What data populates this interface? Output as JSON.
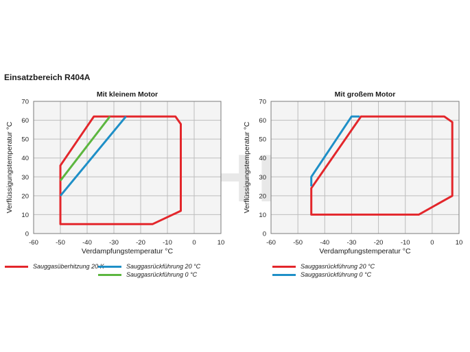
{
  "page_title": "Einsatzbereich R404A",
  "watermark_text": "SCHIESSL",
  "colors": {
    "red": "#e3262b",
    "blue": "#1e8fc7",
    "green": "#5cb63f",
    "grid": "#bdbdbd",
    "plot_bg": "#f4f4f4"
  },
  "chart_data": [
    {
      "type": "line",
      "title": "Mit kleinem Motor",
      "xlabel": "Verdampfungstemperatur °C",
      "ylabel": "Verflüssigungstemperatur °C",
      "xlim": [
        -60,
        10
      ],
      "ylim": [
        0,
        70
      ],
      "xticks": [
        "-60",
        "-50",
        "-40",
        "-30",
        "-20",
        "-10",
        "0",
        "10"
      ],
      "yticks": [
        "0",
        "10",
        "20",
        "30",
        "40",
        "50",
        "60",
        "70"
      ],
      "grid": true,
      "series": [
        {
          "name": "Sauggasüberhitzung 20 K",
          "color": "red",
          "closed": true,
          "points": [
            [
              -50,
              36
            ],
            [
              -37.5,
              62
            ],
            [
              -7,
              62
            ],
            [
              -5,
              58
            ],
            [
              -5,
              12
            ],
            [
              -15.5,
              5
            ],
            [
              -50,
              5
            ]
          ]
        },
        {
          "name": "Sauggasrückführung 20 °C",
          "color": "blue",
          "closed": false,
          "points": [
            [
              -50,
              20
            ],
            [
              -25.5,
              62
            ]
          ]
        },
        {
          "name": "Sauggasrückführung 0 °C",
          "color": "green",
          "closed": false,
          "points": [
            [
              -50,
              28
            ],
            [
              -31.5,
              62
            ]
          ]
        }
      ]
    },
    {
      "type": "line",
      "title": "Mit großem Motor",
      "xlabel": "Verdampfungstemperatur °C",
      "ylabel": "Verflüssigungstemperatur °C",
      "xlim": [
        -60,
        10
      ],
      "ylim": [
        0,
        70
      ],
      "xticks": [
        "-60",
        "-50",
        "-40",
        "-30",
        "-20",
        "-10",
        "0",
        "10"
      ],
      "yticks": [
        "0",
        "10",
        "20",
        "30",
        "40",
        "50",
        "60",
        "70"
      ],
      "grid": true,
      "series": [
        {
          "name": "Sauggasrückführung 20 °C",
          "color": "red",
          "closed": true,
          "points": [
            [
              -45,
              24
            ],
            [
              -26.5,
              62
            ],
            [
              4.5,
              62
            ],
            [
              7.5,
              59
            ],
            [
              7.5,
              20
            ],
            [
              -5,
              10
            ],
            [
              -45,
              10
            ]
          ]
        },
        {
          "name": "Sauggasrückführung 0 °C",
          "color": "blue",
          "closed": false,
          "points": [
            [
              -45,
              25
            ],
            [
              -45,
              30
            ],
            [
              -30,
              62
            ],
            [
              -27,
              62
            ]
          ]
        }
      ]
    }
  ]
}
